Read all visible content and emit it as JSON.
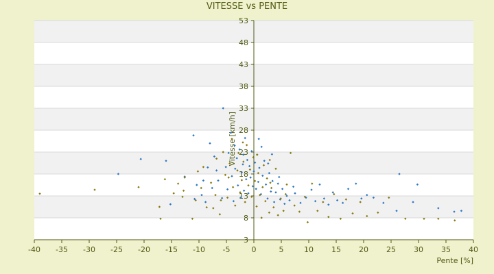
{
  "chart_data": {
    "type": "scatter",
    "title": "VITESSE vs PENTE",
    "xlabel": "Pente [%]",
    "ylabel": "Vitesse [km/h]",
    "xlim": [
      -40,
      40
    ],
    "ylim": [
      3,
      53
    ],
    "x_ticks": [
      -40,
      -35,
      -30,
      -25,
      -20,
      -15,
      -10,
      -5,
      0,
      5,
      10,
      15,
      20,
      25,
      30,
      35,
      40
    ],
    "y_ticks": [
      3,
      8,
      13,
      18,
      23,
      28,
      33,
      38,
      43,
      48,
      53
    ],
    "grid": "horizontal-bands",
    "legend": "none",
    "colors": {
      "series_a": "#2f78c4",
      "series_b": "#8a7a10",
      "axis": "#4f5a12",
      "band_light": "#ffffff",
      "band_shade": "#f1f1f1"
    },
    "series": [
      {
        "color": "#2f78c4",
        "points": [
          [
            -24.7,
            18
          ],
          [
            -20.6,
            21.4
          ],
          [
            -16,
            21
          ],
          [
            -15.2,
            11.1
          ],
          [
            -11,
            26.8
          ],
          [
            -10.4,
            15.5
          ],
          [
            -9.5,
            13.2
          ],
          [
            -9.2,
            16.5
          ],
          [
            -8.4,
            19.5
          ],
          [
            -8,
            25
          ],
          [
            -7.2,
            22
          ],
          [
            -6.5,
            16.5
          ],
          [
            -5.8,
            12.5
          ],
          [
            -5.6,
            33
          ],
          [
            -5.1,
            19.6
          ],
          [
            -4.8,
            14.5
          ],
          [
            -4.6,
            22.8
          ],
          [
            -4.2,
            27.4
          ],
          [
            -4,
            17.5
          ],
          [
            -3.7,
            11.8
          ],
          [
            -3.4,
            19.2
          ],
          [
            -3.1,
            21.6
          ],
          [
            -2.9,
            15.4
          ],
          [
            -2.6,
            23.6
          ],
          [
            -2.4,
            12.6
          ],
          [
            -2.2,
            18.4
          ],
          [
            -2,
            20.2
          ],
          [
            -1.8,
            14.2
          ],
          [
            -1.6,
            26.2
          ],
          [
            -1.4,
            16.8
          ],
          [
            -1.2,
            21.2
          ],
          [
            -1,
            13.6
          ],
          [
            -0.8,
            19.8
          ],
          [
            -0.6,
            17.2
          ],
          [
            -0.4,
            23.2
          ],
          [
            -0.2,
            15.2
          ],
          [
            0,
            18.6
          ],
          [
            0.2,
            20.6
          ],
          [
            0.4,
            14.6
          ],
          [
            0.6,
            22.4
          ],
          [
            0.8,
            16.2
          ],
          [
            1,
            19.4
          ],
          [
            1.3,
            13.4
          ],
          [
            1.6,
            17.6
          ],
          [
            1.9,
            21
          ],
          [
            2.2,
            15.6
          ],
          [
            2.5,
            12.4
          ],
          [
            2.8,
            18.2
          ],
          [
            3.1,
            14
          ],
          [
            3.4,
            16.4
          ],
          [
            3.7,
            11.6
          ],
          [
            4,
            13.8
          ],
          [
            4.4,
            15.8
          ],
          [
            4.8,
            12.2
          ],
          [
            5.2,
            14.6
          ],
          [
            5.6,
            11.2
          ],
          [
            6,
            13
          ],
          [
            6.5,
            12
          ],
          [
            7.5,
            13.6
          ],
          [
            8.5,
            11.4
          ],
          [
            9.5,
            12.6
          ],
          [
            10.5,
            14.4
          ],
          [
            11.2,
            11.8
          ],
          [
            12,
            15.6
          ],
          [
            12.8,
            12.4
          ],
          [
            13.6,
            11
          ],
          [
            14.4,
            13.8
          ],
          [
            15.2,
            12
          ],
          [
            16.2,
            11.4
          ],
          [
            17.2,
            14.6
          ],
          [
            18.6,
            15.8
          ],
          [
            19.6,
            12.4
          ],
          [
            20.6,
            13.2
          ],
          [
            21.8,
            12.6
          ],
          [
            23.6,
            11.4
          ],
          [
            26,
            9.6
          ],
          [
            26.5,
            18
          ],
          [
            29,
            11.6
          ],
          [
            29.8,
            15.6
          ],
          [
            33.6,
            10.2
          ],
          [
            36.5,
            9.4
          ],
          [
            37.8,
            9.6
          ],
          [
            -10.8,
            12.3
          ],
          [
            -6.8,
            18.8
          ],
          [
            -3.5,
            24.5
          ],
          [
            -1.9,
            22.4
          ],
          [
            1.4,
            24.2
          ],
          [
            2.6,
            20.4
          ],
          [
            4.6,
            17.3
          ],
          [
            7.2,
            15.1
          ],
          [
            -12.6,
            17.4
          ],
          [
            -8.8,
            11.6
          ],
          [
            -7.6,
            14.8
          ],
          [
            0.9,
            26
          ],
          [
            3.3,
            22.5
          ]
        ]
      },
      {
        "color": "#8a7a10",
        "points": [
          [
            -39,
            13.5
          ],
          [
            -29,
            14.4
          ],
          [
            -21,
            15
          ],
          [
            -17,
            7.8
          ],
          [
            -17.2,
            10.5
          ],
          [
            -16.2,
            16.8
          ],
          [
            -14.6,
            13.6
          ],
          [
            -13.8,
            15.8
          ],
          [
            -12.8,
            14.2
          ],
          [
            -12.6,
            17.2
          ],
          [
            -11.2,
            7.8
          ],
          [
            -10.6,
            12
          ],
          [
            -9.6,
            14.8
          ],
          [
            -9.2,
            19.6
          ],
          [
            -8.6,
            10.4
          ],
          [
            -7.8,
            16
          ],
          [
            -7,
            13.2
          ],
          [
            -6.8,
            21.5
          ],
          [
            -6.2,
            8.8
          ],
          [
            -5.6,
            23
          ],
          [
            -5.2,
            17.8
          ],
          [
            -4.8,
            12.6
          ],
          [
            -4.4,
            20.4
          ],
          [
            -4,
            26
          ],
          [
            -3.8,
            15
          ],
          [
            -3.4,
            10.8
          ],
          [
            -3,
            18.8
          ],
          [
            -2.8,
            22.8
          ],
          [
            -2.5,
            13.8
          ],
          [
            -2.2,
            16.6
          ],
          [
            -1.9,
            20.8
          ],
          [
            -1.6,
            11.6
          ],
          [
            -1.3,
            24.6
          ],
          [
            -1,
            15.4
          ],
          [
            -0.7,
            19
          ],
          [
            -0.4,
            12.8
          ],
          [
            -0.1,
            21.8
          ],
          [
            0.2,
            16.4
          ],
          [
            0.5,
            10.6
          ],
          [
            0.8,
            18.2
          ],
          [
            1.1,
            13.2
          ],
          [
            1.4,
            8
          ],
          [
            1.8,
            20
          ],
          [
            2.1,
            11.8
          ],
          [
            2.4,
            17
          ],
          [
            2.8,
            9.2
          ],
          [
            3.2,
            14.8
          ],
          [
            3.6,
            10.4
          ],
          [
            4,
            19.2
          ],
          [
            4.4,
            8.6
          ],
          [
            4.9,
            12.4
          ],
          [
            5.4,
            9.6
          ],
          [
            6,
            15.6
          ],
          [
            6.7,
            22.8
          ],
          [
            7.4,
            10.8
          ],
          [
            8.3,
            9.4
          ],
          [
            9.3,
            12.8
          ],
          [
            9.8,
            7
          ],
          [
            10.6,
            15.8
          ],
          [
            11.6,
            9.6
          ],
          [
            12.6,
            11.6
          ],
          [
            13.6,
            8.2
          ],
          [
            14.6,
            13.4
          ],
          [
            15.8,
            7.8
          ],
          [
            16.8,
            12.2
          ],
          [
            18,
            9
          ],
          [
            19.4,
            11.6
          ],
          [
            20.6,
            8.4
          ],
          [
            22.6,
            9.2
          ],
          [
            24.6,
            12.6
          ],
          [
            27.6,
            7.8
          ],
          [
            31,
            7.8
          ],
          [
            33.6,
            7.8
          ],
          [
            36.6,
            7.4
          ],
          [
            -7.4,
            10.2
          ],
          [
            -4.6,
            17.2
          ],
          [
            -2,
            25.2
          ],
          [
            0.6,
            22.4
          ],
          [
            3,
            16
          ],
          [
            5.8,
            13.4
          ],
          [
            -13,
            12.8
          ],
          [
            -10.2,
            18.6
          ],
          [
            -6,
            12
          ],
          [
            1.6,
            15
          ],
          [
            2.9,
            21.2
          ]
        ]
      }
    ]
  }
}
